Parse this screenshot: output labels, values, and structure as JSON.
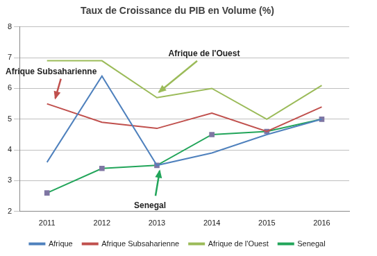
{
  "chart_data": {
    "type": "line",
    "title": "Taux de Croissance du PIB en Volume (%)",
    "categories": [
      "2011",
      "2012",
      "2013",
      "2014",
      "2015",
      "2016"
    ],
    "series": [
      {
        "name": "Afrique",
        "color": "#4f81bd",
        "values": [
          3.6,
          6.4,
          3.5,
          3.9,
          4.5,
          5.0
        ]
      },
      {
        "name": "Afrique Subsaharienne",
        "color": "#c0504d",
        "values": [
          5.5,
          4.9,
          4.7,
          5.2,
          4.6,
          5.4
        ]
      },
      {
        "name": "Afrique de l'Ouest",
        "color": "#9bbb59",
        "values": [
          6.9,
          6.9,
          5.7,
          6.0,
          5.0,
          6.1
        ]
      },
      {
        "name": "Senegal",
        "color": "#22a55a",
        "marker": "square",
        "values": [
          2.6,
          3.4,
          3.5,
          4.5,
          4.6,
          5.0
        ]
      }
    ],
    "annotations": [
      "Afrique de l'Ouest",
      "Afrique Subsaharienne",
      "Senegal"
    ],
    "ylim": [
      2,
      8
    ],
    "yticks": [
      2,
      3,
      4,
      5,
      6,
      7,
      8
    ],
    "grid": true,
    "legend": "bottom"
  }
}
